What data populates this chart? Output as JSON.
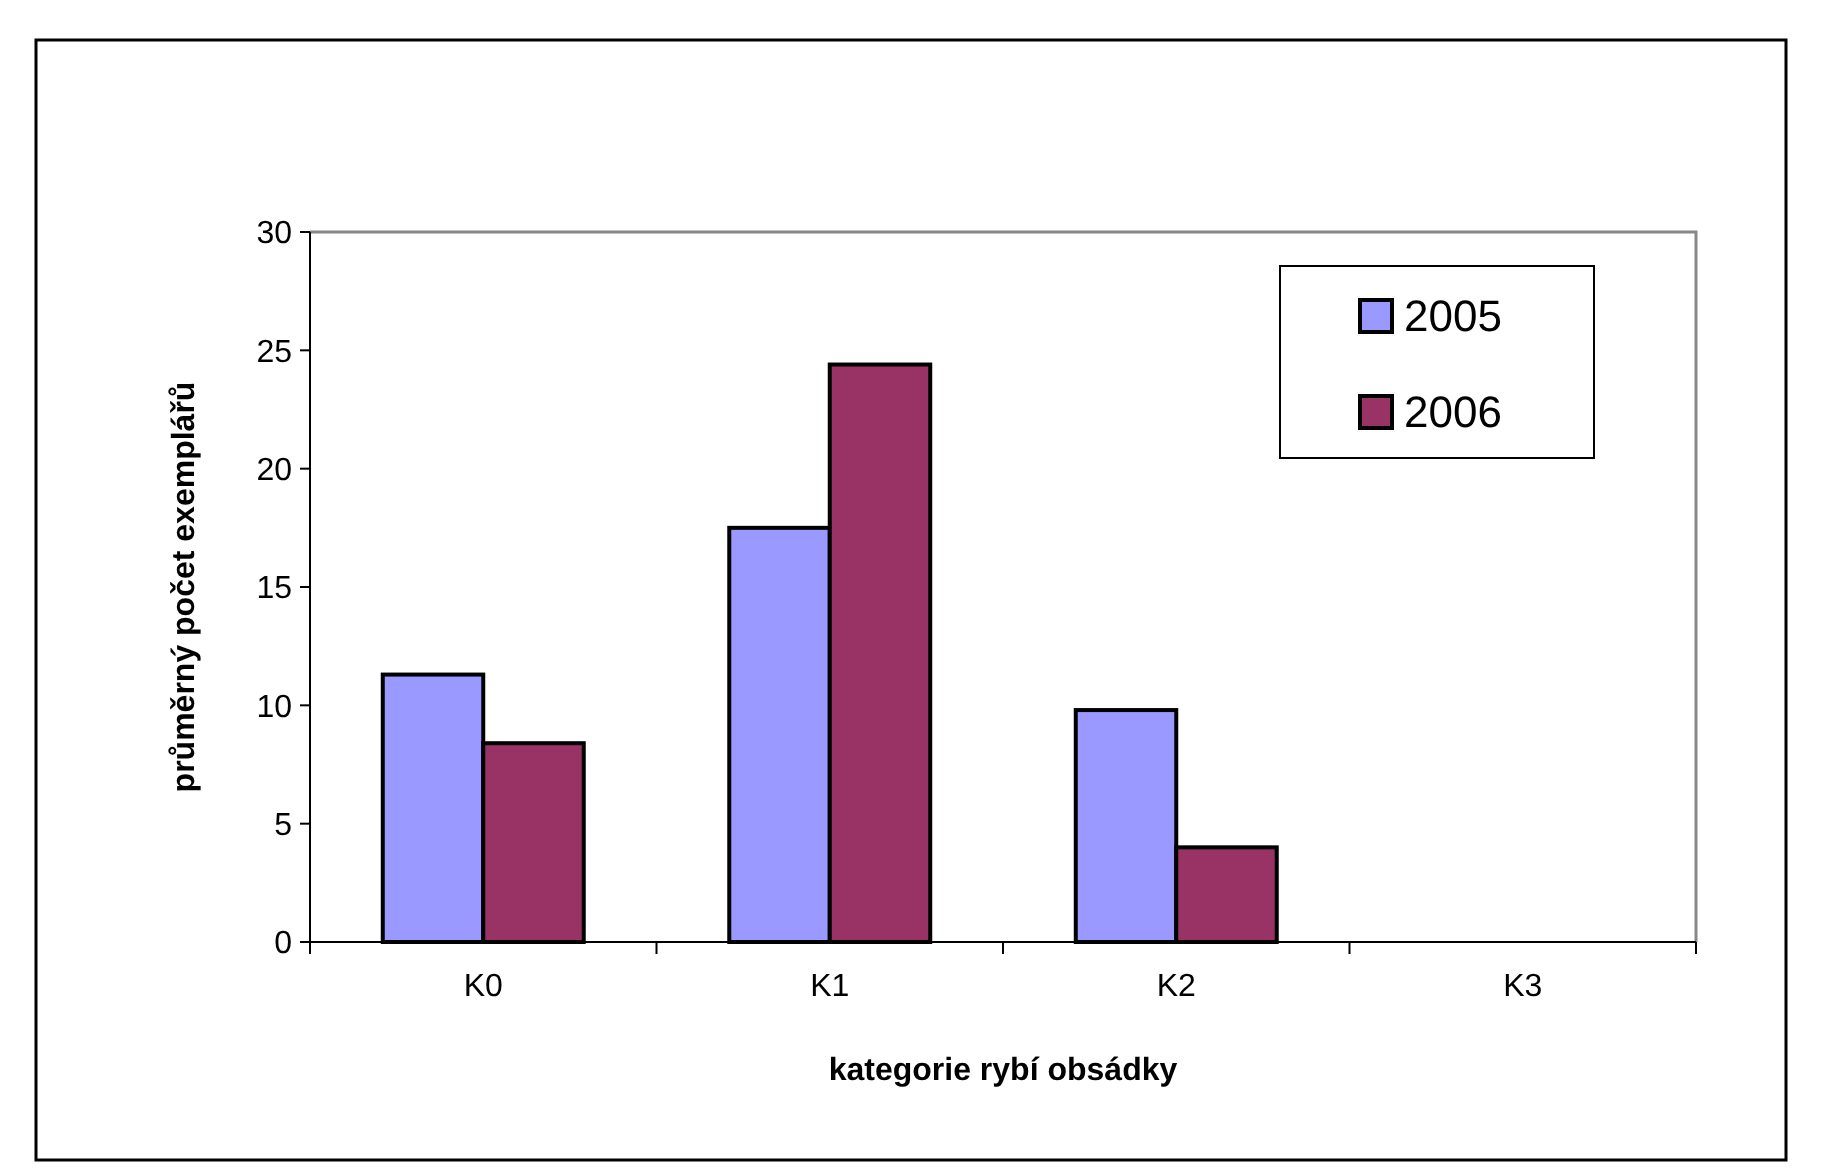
{
  "chart_data": {
    "type": "bar",
    "xlabel": "kategorie rybí obsádky",
    "ylabel": "průměrný počet exemplářů",
    "categories": [
      "K0",
      "K1",
      "K2",
      "K3"
    ],
    "series": [
      {
        "name": "2005",
        "color": "#9999ff",
        "values": [
          11.3,
          17.5,
          9.8,
          null
        ]
      },
      {
        "name": "2006",
        "color": "#993366",
        "values": [
          8.4,
          24.4,
          4.0,
          null
        ]
      }
    ],
    "ylim": [
      0,
      30
    ],
    "yticks": [
      0,
      5,
      10,
      15,
      20,
      25,
      30
    ],
    "grid": false,
    "legend": "top right"
  }
}
